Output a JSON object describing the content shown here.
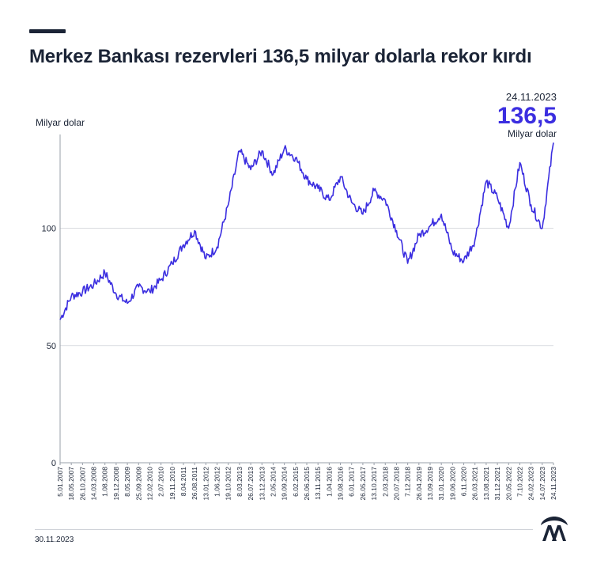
{
  "header": {
    "title": "Merkez Bankası rezervleri 136,5 milyar dolarla rekor kırdı"
  },
  "callout": {
    "date": "24.11.2023",
    "value": "136,5",
    "unit": "Milyar dolar"
  },
  "footer": {
    "date": "30.11.2023"
  },
  "colors": {
    "line": "#3b2ee0",
    "text": "#1b2436",
    "grid": "#d6d8dd"
  },
  "chart_data": {
    "type": "line",
    "title": "Merkez Bankası rezervleri 136,5 milyar dolarla rekor kırdı",
    "ylabel": "Milyar dolar",
    "xlabel": "",
    "ylim": [
      0,
      140
    ],
    "yticks": [
      0,
      50,
      100
    ],
    "grid": true,
    "xtick_labels": [
      "5.01.2007",
      "18.05.2007",
      "26.10.2007",
      "14.03.2008",
      "1.08.2008",
      "19.12.2008",
      "8.05.2009",
      "25.09.2009",
      "12.02.2010",
      "2.07.2010",
      "19.11.2010",
      "8.04.2011",
      "26.08.2011",
      "13.01.2012",
      "1.06.2012",
      "19.10.2012",
      "8.03.2013",
      "26.07.2013",
      "13.12.2013",
      "2.05.2014",
      "19.09.2014",
      "6.02.2015",
      "26.06.2015",
      "13.11.2015",
      "1.04.2016",
      "19.08.2016",
      "6.01.2017",
      "26.05.2017",
      "13.10.2017",
      "2.03.2018",
      "20.07.2018",
      "7.12.2018",
      "26.04.2019",
      "13.09.2019",
      "31.01.2020",
      "19.06.2020",
      "6.11.2020",
      "26.03.2021",
      "13.08.2021",
      "31.12.2021",
      "20.05.2022",
      "7.10.2022",
      "24.02.2023",
      "14.07.2023",
      "24.11.2023"
    ],
    "series": [
      {
        "x": [
          "5.01.2007",
          "18.05.2007",
          "26.10.2007",
          "14.03.2008",
          "1.08.2008",
          "19.12.2008",
          "8.05.2009",
          "25.09.2009",
          "12.02.2010",
          "2.07.2010",
          "19.11.2010",
          "8.04.2011",
          "26.08.2011",
          "13.01.2012",
          "1.06.2012",
          "19.10.2012",
          "8.03.2013",
          "26.07.2013",
          "13.12.2013",
          "2.05.2014",
          "19.09.2014",
          "6.02.2015",
          "26.06.2015",
          "13.11.2015",
          "1.04.2016",
          "19.08.2016",
          "6.01.2017",
          "26.05.2017",
          "13.10.2017",
          "2.03.2018",
          "20.07.2018",
          "7.12.2018",
          "26.04.2019",
          "13.09.2019",
          "31.01.2020",
          "19.06.2020",
          "6.11.2020",
          "26.03.2021",
          "13.08.2021",
          "31.12.2021",
          "20.05.2022",
          "7.10.2022",
          "24.02.2023",
          "14.07.2023",
          "24.11.2023"
        ],
        "values": [
          61,
          71,
          73,
          76,
          81,
          72,
          68,
          75,
          73,
          78,
          85,
          93,
          99,
          87,
          92,
          110,
          133,
          125,
          133,
          123,
          134,
          130,
          121,
          117,
          112,
          122,
          111,
          106,
          116,
          112,
          99,
          85,
          97,
          101,
          106,
          90,
          86,
          95,
          120,
          113,
          100,
          128,
          110,
          100,
          136.5
        ]
      }
    ]
  }
}
